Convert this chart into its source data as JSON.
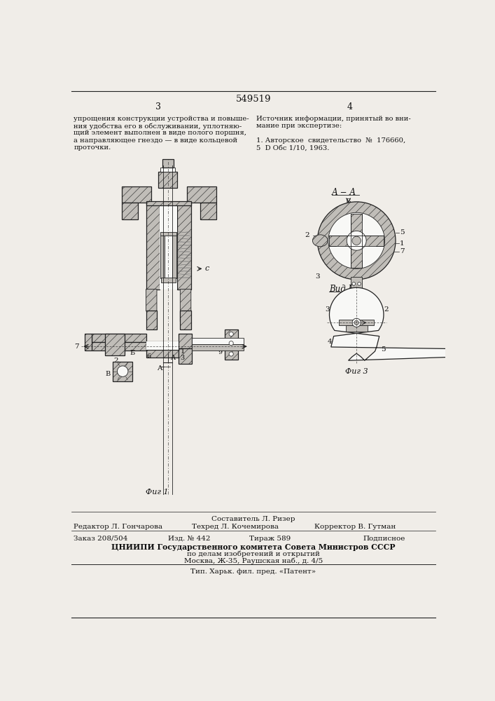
{
  "patent_number": "549519",
  "page_numbers": [
    "3",
    "4"
  ],
  "text_col1_lines": [
    "упрощения конструкции устройства и повыше-",
    "ния удобства его в обслуживании, уплотняю-",
    "щий элемент выполнен в виде полого поршня,",
    "а направляющее гнездо — в виде кольцевой",
    "проточки."
  ],
  "text_col2_line1": "Источник информации, принятый во вни-",
  "text_col2_line2": "мание при экспертизе:",
  "text_col2_line3": "1. Авторское  свидетельство  №  176660,",
  "text_col2_line4": "5  D Обс 1/10, 1963.",
  "footer_line1": "Составитель Л. Ризер",
  "footer_left": "Редактор Л. Гончарова",
  "footer_mid": "Техред Л. Кочемирова",
  "footer_right": "Корректор В. Гутман",
  "footer_order": "Заказ 208/504",
  "footer_ed": "Изд. № 442",
  "footer_tir": "Тираж 589",
  "footer_sub": "Подписное",
  "footer_org": "ЦНИИПИ Государственного комитета Совета Министров СССР",
  "footer_dept": "по делам изобретений и открытий",
  "footer_addr": "Москва, Ж-35, Раушская наб., д. 4/5",
  "footer_print": "Тип. Харьк. фил. пред. «Патент»",
  "bg": "#f0ede8",
  "tc": "#111111",
  "dc": "#222222"
}
